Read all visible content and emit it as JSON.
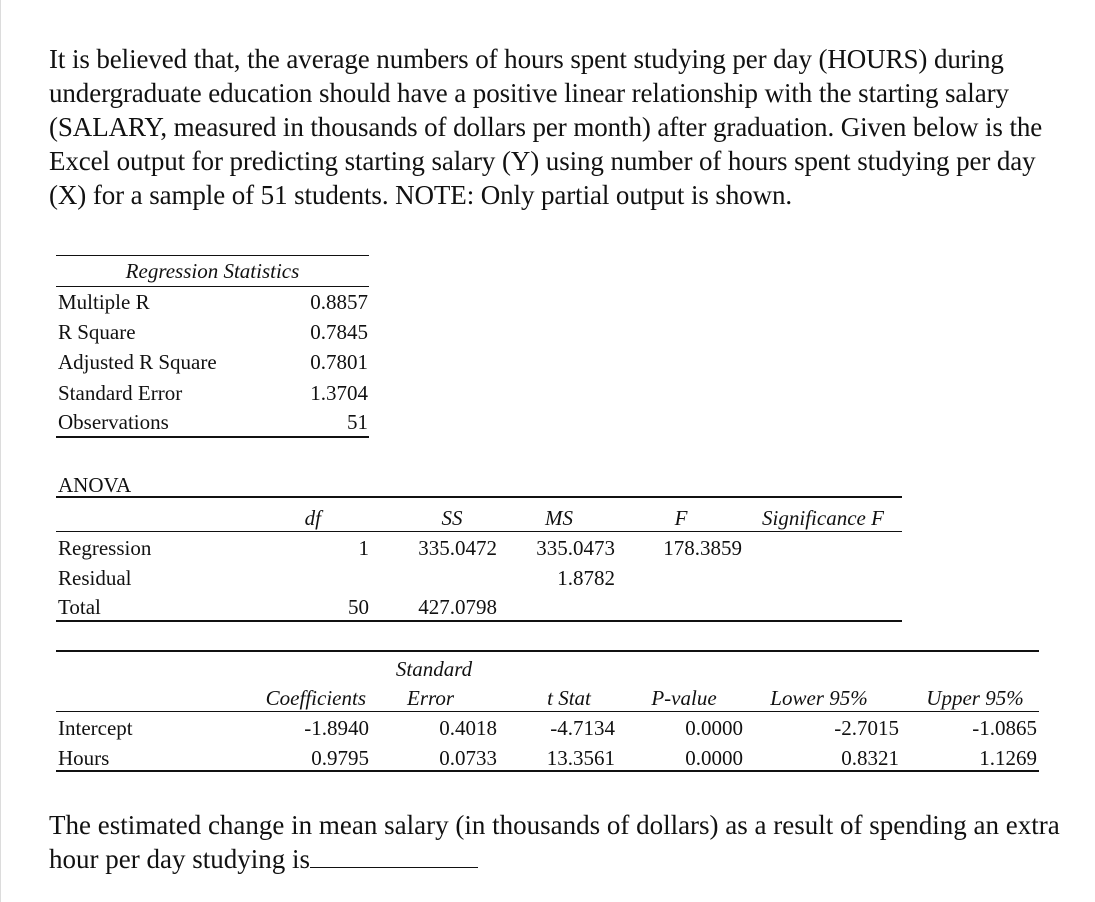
{
  "question": {
    "intro": "It is believed that, the average numbers of hours spent studying per day (HOURS) during undergraduate education should have a positive linear relationship with the starting salary (SALARY, measured in thousands of dollars per month) after graduation. Given below is the Excel output for predicting starting salary (Y) using number of hours spent studying per day (X) for a sample of 51 students. NOTE: Only partial output is shown.",
    "prompt": "The estimated change in mean salary (in thousands of dollars) as a result of spending an extra hour per day studying is"
  },
  "regression_statistics": {
    "title": "Regression Statistics",
    "rows": [
      {
        "label": "Multiple R",
        "value": "0.8857"
      },
      {
        "label": "R Square",
        "value": "0.7845"
      },
      {
        "label": "Adjusted R Square",
        "value": "0.7801"
      },
      {
        "label": "Standard Error",
        "value": "1.3704"
      },
      {
        "label": "Observations",
        "value": "51"
      }
    ]
  },
  "anova": {
    "title": "ANOVA",
    "headers": {
      "df": "df",
      "ss": "SS",
      "ms": "MS",
      "f": "F",
      "sig": "Significance F"
    },
    "rows": [
      {
        "label": "Regression",
        "df": "1",
        "ss": "335.0472",
        "ms": "335.0473",
        "f": "178.3859",
        "sig": ""
      },
      {
        "label": "Residual",
        "df": "",
        "ss": "",
        "ms": "1.8782",
        "f": "",
        "sig": ""
      },
      {
        "label": "Total",
        "df": "50",
        "ss": "427.0798",
        "ms": "",
        "f": "",
        "sig": ""
      }
    ]
  },
  "coefficients": {
    "headers": {
      "coef": "Coefficients",
      "se_top": "Standard",
      "se_bottom": "Error",
      "t": "t Stat",
      "p": "P-value",
      "lower": "Lower 95%",
      "upper": "Upper 95%"
    },
    "rows": [
      {
        "label": "Intercept",
        "coef": "-1.8940",
        "se": "0.4018",
        "t": "-4.7134",
        "p": "0.0000",
        "lower": "-2.7015",
        "upper": "-1.0865"
      },
      {
        "label": "Hours",
        "coef": "0.9795",
        "se": "0.0733",
        "t": "13.3561",
        "p": "0.0000",
        "lower": "0.8321",
        "upper": "1.1269"
      }
    ]
  }
}
